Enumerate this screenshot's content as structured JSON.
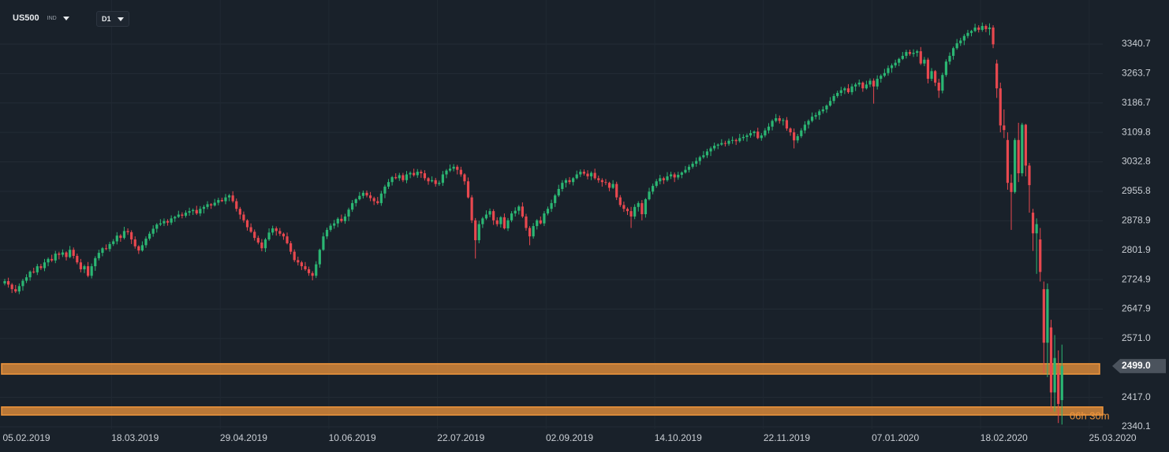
{
  "chart_data": {
    "type": "candlestick",
    "title": "US500",
    "instrument_type": "IND",
    "timeframe": "D1",
    "up_color": "#2bb673",
    "down_color": "#e8484f",
    "zone_color": "#f0963c",
    "grid": true,
    "ylim": [
      2334,
      3456
    ],
    "yticks": [
      2340.1,
      {
        "value": 2417,
        "label": "2417.0"
      },
      {
        "value": 2571,
        "label": "2571.0"
      },
      2647.9,
      2724.9,
      2801.9,
      2878.9,
      2955.8,
      3032.8,
      3109.8,
      3186.7,
      3263.7,
      3340.7
    ],
    "current_price": {
      "value": 2499,
      "label": "2499.0"
    },
    "countdown": "06h 30m",
    "zones": [
      [
        2478,
        2505
      ],
      [
        2371,
        2392
      ]
    ],
    "categories": [
      null,
      null,
      null,
      null,
      null,
      null,
      "05.02.2019",
      null,
      null,
      null,
      null,
      null,
      null,
      null,
      null,
      null,
      null,
      null,
      null,
      null,
      null,
      null,
      null,
      null,
      null,
      null,
      null,
      null,
      null,
      null,
      null,
      null,
      null,
      null,
      null,
      null,
      "18.03.2019",
      null,
      null,
      null,
      null,
      null,
      null,
      null,
      null,
      null,
      null,
      null,
      null,
      null,
      null,
      null,
      null,
      null,
      null,
      null,
      null,
      null,
      null,
      null,
      null,
      null,
      null,
      null,
      null,
      null,
      "29.04.2019",
      null,
      null,
      null,
      null,
      null,
      null,
      null,
      null,
      null,
      null,
      null,
      null,
      null,
      null,
      null,
      null,
      null,
      null,
      null,
      null,
      null,
      null,
      null,
      null,
      null,
      null,
      null,
      null,
      null,
      "10.06.2019",
      null,
      null,
      null,
      null,
      null,
      null,
      null,
      null,
      null,
      null,
      null,
      null,
      null,
      null,
      null,
      null,
      null,
      null,
      null,
      null,
      null,
      null,
      null,
      null,
      null,
      null,
      null,
      null,
      null,
      "22.07.2019",
      null,
      null,
      null,
      null,
      null,
      null,
      null,
      null,
      null,
      null,
      null,
      null,
      null,
      null,
      null,
      null,
      null,
      null,
      null,
      null,
      null,
      null,
      null,
      null,
      null,
      null,
      null,
      null,
      null,
      "02.09.2019",
      null,
      null,
      null,
      null,
      null,
      null,
      null,
      null,
      null,
      null,
      null,
      null,
      null,
      null,
      null,
      null,
      null,
      null,
      null,
      null,
      null,
      null,
      null,
      null,
      null,
      null,
      null,
      null,
      null,
      "14.10.2019",
      null,
      null,
      null,
      null,
      null,
      null,
      null,
      null,
      null,
      null,
      null,
      null,
      null,
      null,
      null,
      null,
      null,
      null,
      null,
      null,
      null,
      null,
      null,
      null,
      null,
      null,
      null,
      null,
      null,
      "22.11.2019",
      null,
      null,
      null,
      null,
      null,
      null,
      null,
      null,
      null,
      null,
      null,
      null,
      null,
      null,
      null,
      null,
      null,
      null,
      null,
      null,
      null,
      null,
      null,
      null,
      null,
      null,
      null,
      null,
      null,
      "07.01.2020",
      null,
      null,
      null,
      null,
      null,
      null,
      null,
      null,
      null,
      null,
      null,
      null,
      null,
      null,
      null,
      null,
      null,
      null,
      null,
      null,
      null,
      null,
      null,
      null,
      null,
      null,
      null,
      null,
      null,
      "18.02.2020",
      null,
      null,
      null,
      null,
      null,
      null,
      null,
      null,
      null,
      null,
      null,
      null,
      null,
      null,
      null,
      null,
      null,
      null,
      null,
      null,
      null,
      null,
      null,
      null,
      null,
      null,
      null,
      null,
      null,
      "25.03.2020"
    ],
    "open": [
      2715,
      2721,
      2712,
      2700,
      2694,
      2708,
      2722,
      2731,
      2746,
      2744,
      2760,
      2755,
      2770,
      2779,
      2775,
      2793,
      2790,
      2796,
      2784,
      2803,
      2787,
      2770,
      2752,
      2760,
      2735,
      2760,
      2781,
      2795,
      2807,
      2805,
      2818,
      2825,
      2840,
      2834,
      2852,
      2849,
      2830,
      2812,
      2801,
      2815,
      2832,
      2845,
      2858,
      2869,
      2872,
      2878,
      2874,
      2885,
      2889,
      2895,
      2892,
      2900,
      2904,
      2907,
      2898,
      2910,
      2915,
      2922,
      2919,
      2926,
      2933,
      2930,
      2940,
      2945,
      2930,
      2910,
      2895,
      2880,
      2862,
      2850,
      2834,
      2822,
      2807,
      2830,
      2848,
      2859,
      2852,
      2845,
      2838,
      2820,
      2798,
      2776,
      2770,
      2760,
      2752,
      2742,
      2735,
      2765,
      2803,
      2838,
      2855,
      2866,
      2872,
      2884,
      2878,
      2890,
      2908,
      2925,
      2935,
      2944,
      2952,
      2945,
      2938,
      2930,
      2925,
      2950,
      2968,
      2980,
      2993,
      2990,
      2998,
      2985,
      3000,
      3004,
      2998,
      3007,
      3003,
      2990,
      2982,
      2985,
      2975,
      2978,
      3000,
      3010,
      3015,
      3020,
      3012,
      3000,
      2982,
      2940,
      2880,
      2828,
      2870,
      2885,
      2895,
      2904,
      2880,
      2870,
      2888,
      2859,
      2880,
      2898,
      2905,
      2916,
      2890,
      2860,
      2838,
      2865,
      2880,
      2872,
      2898,
      2910,
      2925,
      2945,
      2962,
      2978,
      2985,
      2980,
      2990,
      3000,
      3007,
      3002,
      2995,
      3004,
      2990,
      2985,
      2980,
      2978,
      2965,
      2975,
      2940,
      2920,
      2910,
      2904,
      2890,
      2915,
      2925,
      2896,
      2935,
      2955,
      2970,
      2982,
      2990,
      2985,
      2995,
      3000,
      2992,
      2999,
      3005,
      3012,
      3020,
      3028,
      3035,
      3045,
      3050,
      3060,
      3068,
      3075,
      3078,
      3082,
      3080,
      3088,
      3090,
      3087,
      3095,
      3098,
      3102,
      3108,
      3112,
      3095,
      3102,
      3115,
      3125,
      3140,
      3147,
      3140,
      3142,
      3120,
      3110,
      3089,
      3100,
      3115,
      3130,
      3140,
      3151,
      3155,
      3165,
      3170,
      3180,
      3192,
      3205,
      3213,
      3220,
      3225,
      3215,
      3230,
      3235,
      3240,
      3225,
      3235,
      3245,
      3230,
      3250,
      3258,
      3265,
      3278,
      3285,
      3292,
      3302,
      3310,
      3320,
      3315,
      3318,
      3322,
      3290,
      3300,
      3250,
      3270,
      3240,
      3219,
      3260,
      3295,
      3310,
      3330,
      3343,
      3350,
      3362,
      3370,
      3375,
      3384,
      3378,
      3388,
      3380,
      3384,
      3290,
      3225,
      3128,
      3090,
      2978,
      2954,
      3090,
      3003,
      3130,
      3023,
      2900,
      2846,
      2830,
      2700,
      2560,
      2600,
      2430,
      2480,
      2410,
      null,
      null,
      null,
      null,
      null,
      null,
      null,
      null,
      null,
      null,
      null,
      null,
      null,
      null
    ],
    "high": [
      2727,
      2730,
      2716,
      2711,
      2715,
      2727,
      2739,
      2749,
      2756,
      2766,
      2766,
      2779,
      2783,
      2790,
      2800,
      2798,
      2804,
      2799,
      2813,
      2809,
      2793,
      2779,
      2764,
      2771,
      2767,
      2786,
      2803,
      2810,
      2817,
      2824,
      2831,
      2849,
      2844,
      2863,
      2859,
      2854,
      2838,
      2815,
      2825,
      2838,
      2851,
      2867,
      2873,
      2883,
      2885,
      2883,
      2893,
      2892,
      2905,
      2901,
      2906,
      2913,
      2911,
      2918,
      2917,
      2920,
      2930,
      2925,
      2936,
      2939,
      2939,
      2949,
      2949,
      2956,
      2937,
      2915,
      2903,
      2883,
      2872,
      2856,
      2840,
      2831,
      2834,
      2859,
      2866,
      2864,
      2860,
      2848,
      2848,
      2826,
      2804,
      2785,
      2774,
      2771,
      2759,
      2747,
      2773,
      2806,
      2848,
      2861,
      2872,
      2881,
      2888,
      2895,
      2897,
      2913,
      2933,
      2938,
      2954,
      2958,
      2958,
      2954,
      2942,
      2941,
      2957,
      2973,
      2988,
      2996,
      3003,
      3004,
      3004,
      3009,
      3008,
      3015,
      3014,
      3012,
      3011,
      2993,
      2995,
      2991,
      2984,
      3009,
      3014,
      3026,
      3027,
      3025,
      3020,
      3003,
      2992,
      2946,
      2886,
      2879,
      2889,
      2906,
      2911,
      2909,
      2888,
      2891,
      2898,
      2886,
      2904,
      2914,
      2920,
      2927,
      2897,
      2865,
      2873,
      2883,
      2890,
      2904,
      2916,
      2934,
      2949,
      2973,
      2985,
      2990,
      2993,
      2993,
      3010,
      3013,
      3013,
      3011,
      3008,
      3015,
      2997,
      2990,
      2988,
      2981,
      2985,
      2981,
      2946,
      2929,
      2914,
      2915,
      2922,
      2930,
      2933,
      2938,
      2965,
      2976,
      2988,
      2999,
      2994,
      3006,
      3007,
      3005,
      3007,
      3008,
      3022,
      3026,
      3034,
      3044,
      3049,
      3061,
      3067,
      3073,
      3083,
      3081,
      3092,
      3088,
      3094,
      3099,
      3094,
      3106,
      3105,
      3107,
      3116,
      3115,
      3122,
      3108,
      3121,
      3134,
      3144,
      3158,
      3154,
      3147,
      3150,
      3123,
      3120,
      3106,
      3121,
      3139,
      3144,
      3162,
      3162,
      3170,
      3178,
      3183,
      3202,
      3211,
      3219,
      3229,
      3229,
      3236,
      3237,
      3240,
      3248,
      3243,
      3245,
      3251,
      3251,
      3259,
      3262,
      3276,
      3285,
      3290,
      3300,
      3305,
      3320,
      3326,
      3326,
      3327,
      3326,
      3333,
      3307,
      3305,
      3278,
      3273,
      3250,
      3266,
      3301,
      3319,
      3334,
      3354,
      3357,
      3367,
      3378,
      3378,
      3394,
      3390,
      3397,
      3392,
      3395,
      3390,
      3300,
      3240,
      3170,
      3110,
      3000,
      3095,
      3135,
      3135,
      3132,
      3030,
      2910,
      2885,
      2860,
      2720,
      2715,
      2620,
      2580,
      2540,
      2555,
      null,
      null,
      null,
      null,
      null,
      null,
      null,
      null,
      null,
      null,
      null,
      null,
      null,
      null
    ],
    "low": [
      2710,
      2704,
      2690,
      2690,
      2687,
      2696,
      2716,
      2722,
      2741,
      2737,
      2750,
      2747,
      2760,
      2771,
      2768,
      2778,
      2784,
      2775,
      2781,
      2780,
      2765,
      2744,
      2742,
      2731,
      2728,
      2748,
      2775,
      2786,
      2802,
      2798,
      2813,
      2817,
      2824,
      2830,
      2842,
      2818,
      2806,
      2792,
      2798,
      2808,
      2827,
      2837,
      2848,
      2865,
      2865,
      2866,
      2868,
      2876,
      2886,
      2885,
      2887,
      2892,
      2894,
      2894,
      2891,
      2898,
      2909,
      2910,
      2916,
      2919,
      2928,
      2922,
      2930,
      2926,
      2903,
      2883,
      2874,
      2853,
      2847,
      2827,
      2817,
      2799,
      2797,
      2826,
      2841,
      2840,
      2839,
      2829,
      2817,
      2791,
      2771,
      2762,
      2750,
      2748,
      2735,
      2723,
      2729,
      2756,
      2800,
      2831,
      2850,
      2858,
      2862,
      2874,
      2871,
      2878,
      2902,
      2916,
      2932,
      2937,
      2940,
      2930,
      2920,
      2921,
      2918,
      2938,
      2962,
      2971,
      2987,
      2983,
      2980,
      2977,
      2990,
      2994,
      2991,
      2991,
      2984,
      2973,
      2979,
      2968,
      2970,
      2970,
      2990,
      3006,
      3008,
      3000,
      2994,
      2973,
      2937,
      2873,
      2780,
      2820,
      2860,
      2881,
      2888,
      2868,
      2864,
      2861,
      2856,
      2852,
      2875,
      2890,
      2895,
      2886,
      2853,
      2815,
      2832,
      2856,
      2869,
      2865,
      2893,
      2902,
      2915,
      2941,
      2955,
      2966,
      2974,
      2971,
      2987,
      2993,
      2997,
      2987,
      2985,
      2986,
      2978,
      2968,
      2972,
      2956,
      2962,
      2933,
      2915,
      2902,
      2894,
      2860,
      2883,
      2903,
      2880,
      2887,
      2932,
      2948,
      2965,
      2974,
      2975,
      2981,
      2988,
      2980,
      2986,
      2990,
      3002,
      3005,
      3015,
      3020,
      3025,
      3041,
      3043,
      3048,
      3062,
      3066,
      3075,
      3073,
      3075,
      3080,
      3077,
      3083,
      3088,
      3086,
      3096,
      3099,
      3092,
      3088,
      3097,
      3107,
      3115,
      3136,
      3133,
      3128,
      3114,
      3101,
      3068,
      3082,
      3095,
      3107,
      3120,
      3136,
      3144,
      3143,
      3159,
      3161,
      3177,
      3185,
      3200,
      3205,
      3210,
      3211,
      3208,
      3218,
      3229,
      3216,
      3222,
      3228,
      3185,
      3222,
      3240,
      3254,
      3258,
      3266,
      3279,
      3283,
      3299,
      3303,
      3310,
      3307,
      3308,
      3286,
      3283,
      3238,
      3244,
      3231,
      3200,
      3212,
      3255,
      3287,
      3300,
      3326,
      3336,
      3338,
      3356,
      3361,
      3372,
      3371,
      3373,
      3372,
      3364,
      3330,
      3200,
      3110,
      3095,
      2960,
      2855,
      2950,
      2980,
      2995,
      2995,
      2900,
      2800,
      2740,
      2720,
      2480,
      2470,
      2380,
      2380,
      2350,
      2346,
      null,
      null,
      null,
      null,
      null,
      null,
      null,
      null,
      null,
      null,
      null,
      null,
      null,
      null
    ],
    "close": [
      2721,
      2712,
      2700,
      2694,
      2708,
      2722,
      2731,
      2746,
      2744,
      2760,
      2755,
      2770,
      2779,
      2775,
      2793,
      2790,
      2796,
      2784,
      2803,
      2787,
      2770,
      2752,
      2760,
      2735,
      2760,
      2781,
      2795,
      2807,
      2805,
      2818,
      2825,
      2840,
      2834,
      2852,
      2849,
      2830,
      2812,
      2801,
      2815,
      2832,
      2845,
      2858,
      2869,
      2872,
      2878,
      2874,
      2885,
      2889,
      2895,
      2892,
      2900,
      2904,
      2907,
      2898,
      2910,
      2915,
      2922,
      2919,
      2926,
      2933,
      2930,
      2940,
      2945,
      2930,
      2910,
      2895,
      2880,
      2862,
      2850,
      2834,
      2822,
      2807,
      2830,
      2848,
      2859,
      2852,
      2845,
      2838,
      2820,
      2798,
      2776,
      2770,
      2760,
      2752,
      2742,
      2735,
      2765,
      2803,
      2838,
      2855,
      2866,
      2872,
      2884,
      2878,
      2890,
      2908,
      2925,
      2935,
      2944,
      2952,
      2945,
      2938,
      2930,
      2925,
      2950,
      2968,
      2980,
      2993,
      2990,
      2998,
      2985,
      3000,
      3004,
      2998,
      3007,
      3003,
      2990,
      2982,
      2985,
      2975,
      2978,
      3000,
      3010,
      3015,
      3020,
      3012,
      3000,
      2982,
      2940,
      2880,
      2828,
      2870,
      2885,
      2895,
      2904,
      2880,
      2870,
      2888,
      2859,
      2880,
      2898,
      2905,
      2916,
      2890,
      2860,
      2838,
      2865,
      2880,
      2872,
      2898,
      2910,
      2925,
      2945,
      2962,
      2978,
      2985,
      2980,
      2990,
      3000,
      3007,
      3002,
      2995,
      3004,
      2990,
      2985,
      2980,
      2978,
      2965,
      2975,
      2940,
      2920,
      2910,
      2904,
      2890,
      2915,
      2925,
      2896,
      2935,
      2955,
      2970,
      2982,
      2990,
      2985,
      2995,
      3000,
      2992,
      2999,
      3005,
      3012,
      3020,
      3028,
      3035,
      3045,
      3050,
      3060,
      3068,
      3075,
      3078,
      3082,
      3080,
      3088,
      3090,
      3087,
      3095,
      3098,
      3102,
      3108,
      3112,
      3095,
      3102,
      3115,
      3125,
      3140,
      3147,
      3140,
      3142,
      3120,
      3110,
      3089,
      3100,
      3115,
      3130,
      3140,
      3151,
      3155,
      3165,
      3170,
      3180,
      3192,
      3205,
      3213,
      3220,
      3225,
      3215,
      3230,
      3235,
      3240,
      3225,
      3235,
      3245,
      3230,
      3250,
      3258,
      3265,
      3278,
      3285,
      3292,
      3302,
      3310,
      3320,
      3315,
      3318,
      3322,
      3290,
      3300,
      3250,
      3270,
      3240,
      3219,
      3260,
      3295,
      3310,
      3330,
      3343,
      3350,
      3362,
      3370,
      3375,
      3384,
      3378,
      3388,
      3380,
      3384,
      3340,
      3225,
      3128,
      3116,
      2978,
      2954,
      3090,
      3003,
      3130,
      3023,
      2972,
      2846,
      2870,
      2745,
      2560,
      2700,
      2430,
      2520,
      2400,
      2499,
      null,
      null,
      null,
      null,
      null,
      null,
      null,
      null,
      null,
      null,
      null,
      null,
      null,
      null
    ]
  }
}
